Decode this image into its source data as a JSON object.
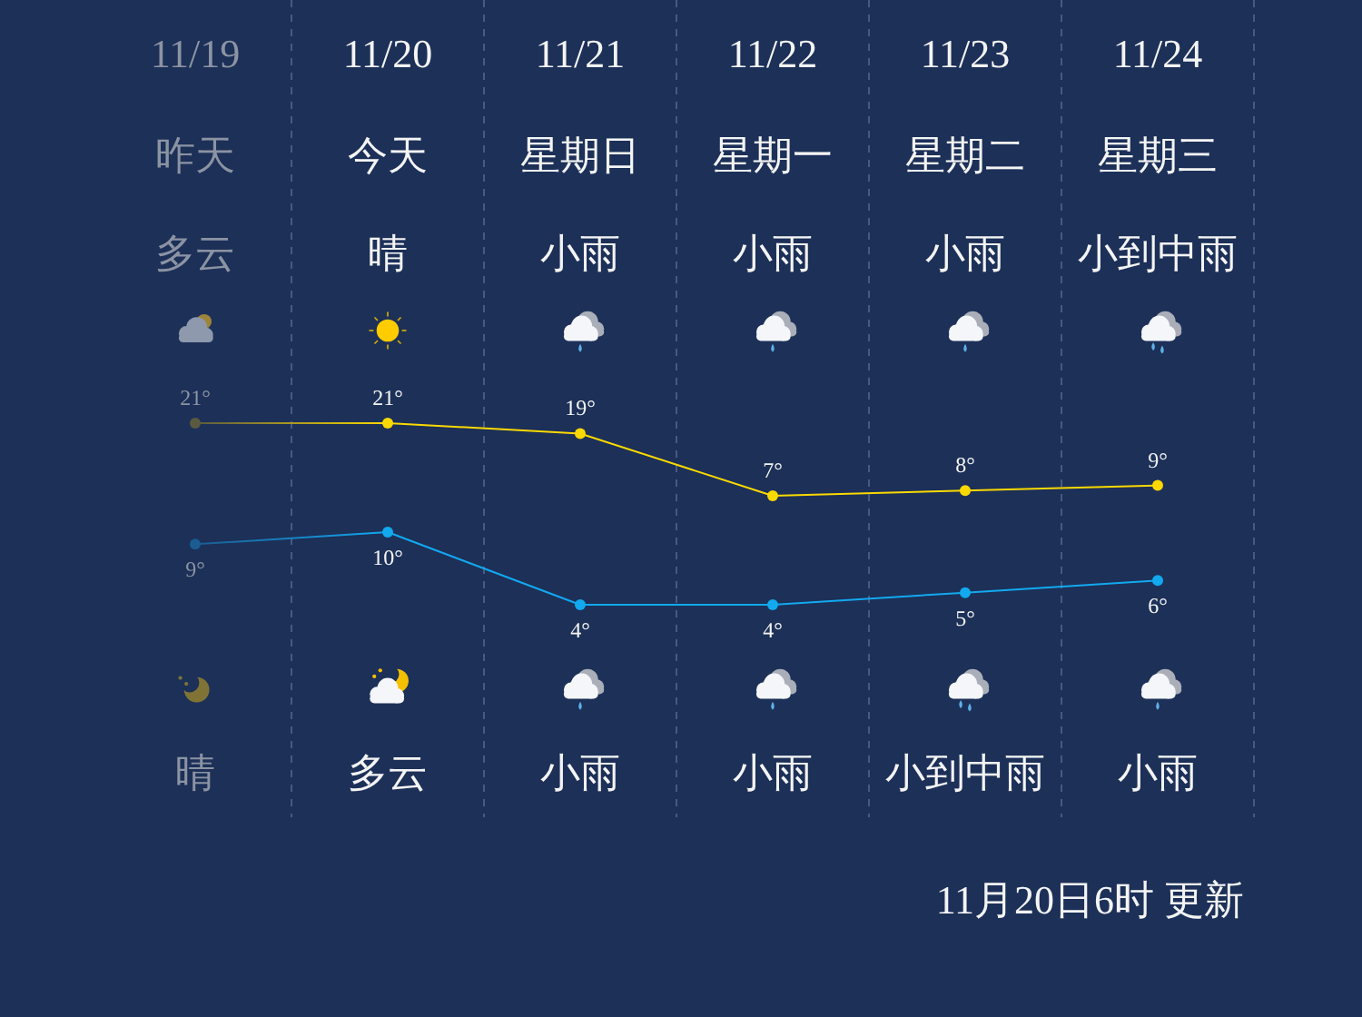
{
  "chart_data": [
    {
      "type": "line",
      "categories": [
        "11/19",
        "11/20",
        "11/21",
        "11/22",
        "11/23",
        "11/24"
      ],
      "series": [
        {
          "values": [
            21,
            21,
            19,
            7,
            8,
            9
          ],
          "color": "#fbd900",
          "colors": [
            "#5b5a40",
            "#fbd900",
            "#fbd900",
            "#fbd900",
            "#fbd900",
            "#fbd900"
          ],
          "value_labels": [
            "21°",
            "21°",
            "19°",
            "7°",
            "8°",
            "9°"
          ]
        }
      ],
      "tick_labels": "x",
      "grid": "x",
      "marker": "circle",
      "annotations": [
        "昨天",
        "今天",
        "星期日",
        "星期一",
        "星期二",
        "星期三",
        "多云",
        "晴",
        "小雨",
        "小雨",
        "小雨",
        "小到中雨"
      ]
    },
    {
      "type": "line",
      "categories": [
        null,
        null,
        null,
        null,
        null,
        null
      ],
      "series": [
        {
          "values": [
            9,
            10,
            4,
            4,
            5,
            6
          ],
          "color": "#12a9ef",
          "colors": [
            "#1b5c93",
            "#12a9ef",
            "#12a9ef",
            "#12a9ef",
            "#12a9ef",
            "#12a9ef"
          ],
          "value_labels": [
            "9°",
            "10°",
            "4°",
            "4°",
            "5°",
            "6°"
          ]
        }
      ],
      "tick_labels": false,
      "grid": "x",
      "marker": "circle",
      "annotations": [
        "晴",
        "多云",
        "小雨",
        "小雨",
        "小到中雨",
        "小雨",
        "11月20日6时 更新"
      ]
    }
  ]
}
